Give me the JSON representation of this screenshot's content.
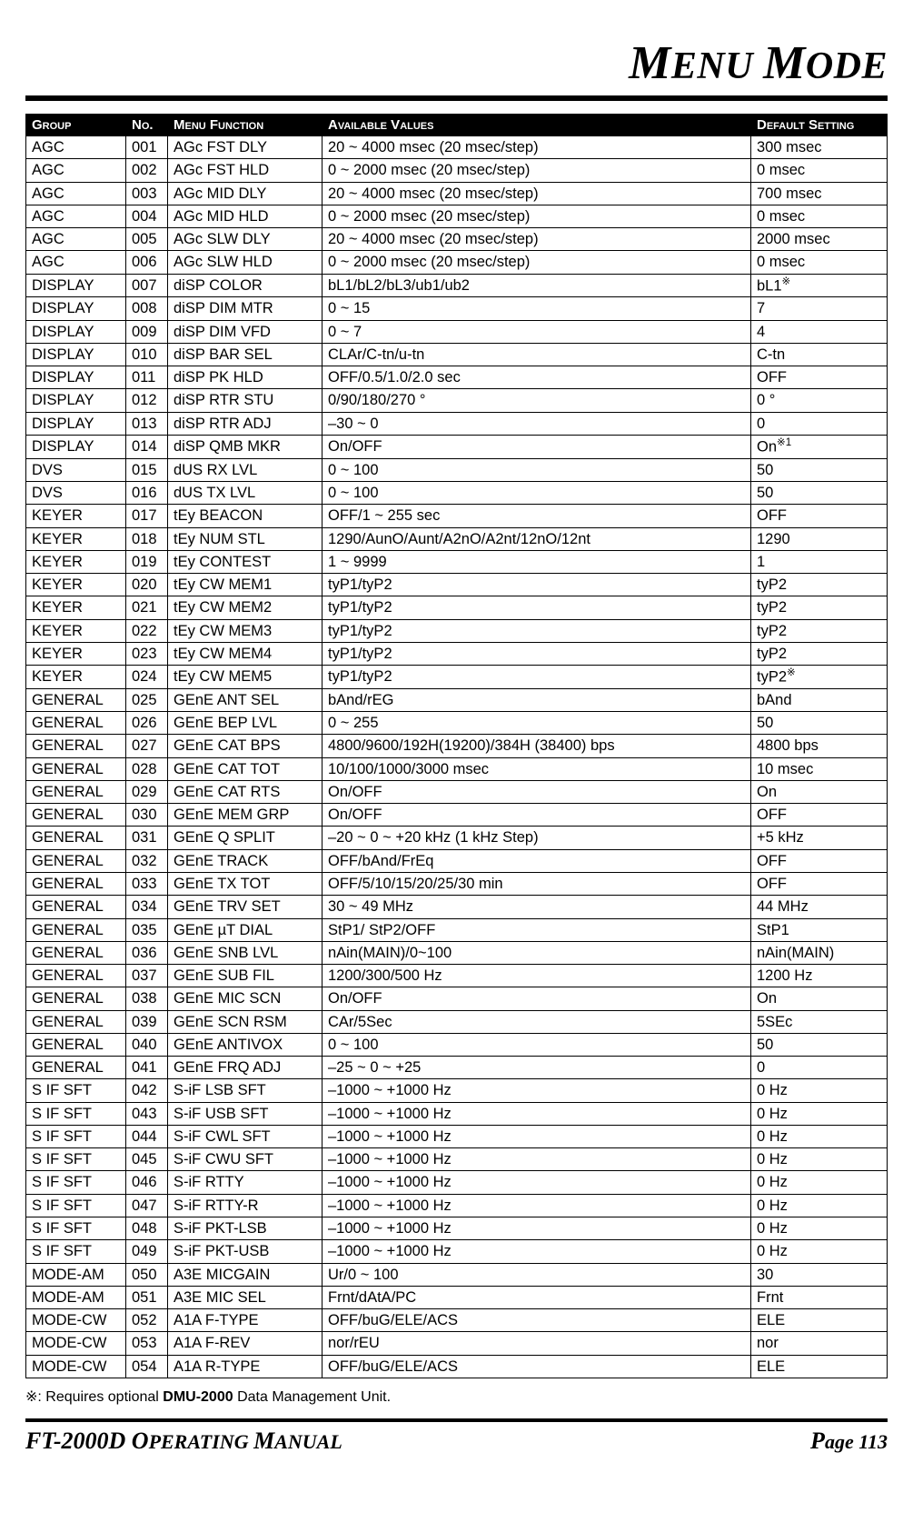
{
  "title_html": "<span class='cap'>M</span>ENU <span class='cap'>M</span>ODE",
  "columns": [
    "Group",
    "No.",
    "Menu Function",
    "Available Values",
    "Default Setting"
  ],
  "rows": [
    [
      "AGC",
      "001",
      "AGc FST DLY",
      "20 ~ 4000 msec (20 msec/step)",
      "300 msec"
    ],
    [
      "AGC",
      "002",
      "AGc FST HLD",
      "0 ~ 2000 msec (20 msec/step)",
      "0 msec"
    ],
    [
      "AGC",
      "003",
      "AGc MID DLY",
      "20 ~ 4000 msec (20 msec/step)",
      "700 msec"
    ],
    [
      "AGC",
      "004",
      "AGc MID HLD",
      "0 ~ 2000 msec (20 msec/step)",
      "0 msec"
    ],
    [
      "AGC",
      "005",
      "AGc SLW DLY",
      "20 ~ 4000 msec (20 msec/step)",
      "2000 msec"
    ],
    [
      "AGC",
      "006",
      "AGc SLW HLD",
      "0 ~ 2000 msec (20 msec/step)",
      "0 msec"
    ],
    [
      "DISPLAY",
      "007",
      "diSP COLOR",
      "bL1/bL2/bL3/ub1/ub2",
      "bL1<sup>※</sup>"
    ],
    [
      "DISPLAY",
      "008",
      "diSP DIM MTR",
      "0 ~ 15",
      "7"
    ],
    [
      "DISPLAY",
      "009",
      "diSP DIM VFD",
      "0 ~ 7",
      "4"
    ],
    [
      "DISPLAY",
      "010",
      "diSP BAR SEL",
      "CLAr/C-tn/u-tn",
      "C-tn"
    ],
    [
      "DISPLAY",
      "011",
      "diSP PK HLD",
      "OFF/0.5/1.0/2.0 sec",
      "OFF"
    ],
    [
      "DISPLAY",
      "012",
      "diSP RTR STU",
      "0/90/180/270 °",
      "0 °"
    ],
    [
      "DISPLAY",
      "013",
      "diSP RTR ADJ",
      "–30 ~ 0",
      "0"
    ],
    [
      "DISPLAY",
      "014",
      "diSP QMB MKR",
      "On/OFF",
      "On<sup>※1</sup>"
    ],
    [
      "DVS",
      "015",
      "dUS RX LVL",
      "0 ~ 100",
      "50"
    ],
    [
      "DVS",
      "016",
      "dUS TX LVL",
      "0 ~ 100",
      "50"
    ],
    [
      "KEYER",
      "017",
      "tEy BEACON",
      "OFF/1 ~ 255 sec",
      "OFF"
    ],
    [
      "KEYER",
      "018",
      "tEy NUM STL",
      "1290/AunO/Aunt/A2nO/A2nt/12nO/12nt",
      "1290"
    ],
    [
      "KEYER",
      "019",
      "tEy CONTEST",
      "1 ~ 9999",
      "1"
    ],
    [
      "KEYER",
      "020",
      "tEy CW MEM1",
      "tyP1/tyP2",
      "tyP2"
    ],
    [
      "KEYER",
      "021",
      "tEy CW MEM2",
      "tyP1/tyP2",
      "tyP2"
    ],
    [
      "KEYER",
      "022",
      "tEy CW MEM3",
      "tyP1/tyP2",
      "tyP2"
    ],
    [
      "KEYER",
      "023",
      "tEy CW MEM4",
      "tyP1/tyP2",
      "tyP2"
    ],
    [
      "KEYER",
      "024",
      "tEy CW MEM5",
      "tyP1/tyP2",
      "tyP2<sup>※</sup>"
    ],
    [
      "GENERAL",
      "025",
      "GEnE ANT SEL",
      "bAnd/rEG",
      "bAnd"
    ],
    [
      "GENERAL",
      "026",
      "GEnE BEP LVL",
      "0 ~ 255",
      "50"
    ],
    [
      "GENERAL",
      "027",
      "GEnE CAT BPS",
      "4800/9600/192H(19200)/384H (38400) bps",
      "4800 bps"
    ],
    [
      "GENERAL",
      "028",
      "GEnE CAT TOT",
      "10/100/1000/3000 msec",
      "10 msec"
    ],
    [
      "GENERAL",
      "029",
      "GEnE CAT RTS",
      "On/OFF",
      "On"
    ],
    [
      "GENERAL",
      "030",
      "GEnE MEM GRP",
      "On/OFF",
      "OFF"
    ],
    [
      "GENERAL",
      "031",
      "GEnE Q SPLIT",
      "–20 ~ 0 ~ +20 kHz (1 kHz Step)",
      "+5 kHz"
    ],
    [
      "GENERAL",
      "032",
      "GEnE TRACK",
      "OFF/bAnd/FrEq",
      "OFF"
    ],
    [
      "GENERAL",
      "033",
      "GEnE TX TOT",
      "OFF/5/10/15/20/25/30 min",
      "OFF"
    ],
    [
      "GENERAL",
      "034",
      "GEnE TRV SET",
      "30 ~ 49 MHz",
      "44 MHz"
    ],
    [
      "GENERAL",
      "035",
      "GEnE µT DIAL",
      "StP1/ StP2/OFF",
      "StP1"
    ],
    [
      "GENERAL",
      "036",
      "GEnE SNB LVL",
      "nAin(MAIN)/0~100",
      "nAin(MAIN)"
    ],
    [
      "GENERAL",
      "037",
      "GEnE SUB FIL",
      "1200/300/500 Hz",
      "1200 Hz"
    ],
    [
      "GENERAL",
      "038",
      "GEnE MIC SCN",
      "On/OFF",
      "On"
    ],
    [
      "GENERAL",
      "039",
      "GEnE SCN RSM",
      "CAr/5Sec",
      "5SEc"
    ],
    [
      "GENERAL",
      "040",
      "GEnE ANTIVOX",
      "0 ~ 100",
      "50"
    ],
    [
      "GENERAL",
      "041",
      "GEnE FRQ ADJ",
      "–25 ~ 0 ~ +25",
      "0"
    ],
    [
      "S IF SFT",
      "042",
      "S-iF LSB SFT",
      "–1000 ~ +1000 Hz",
      "0 Hz"
    ],
    [
      "S IF SFT",
      "043",
      "S-iF USB SFT",
      "–1000 ~ +1000 Hz",
      "0 Hz"
    ],
    [
      "S IF SFT",
      "044",
      "S-iF CWL SFT",
      "–1000 ~ +1000 Hz",
      "0 Hz"
    ],
    [
      "S IF SFT",
      "045",
      "S-iF CWU SFT",
      "–1000 ~ +1000 Hz",
      "0 Hz"
    ],
    [
      "S IF SFT",
      "046",
      "S-iF RTTY",
      "–1000 ~ +1000 Hz",
      "0 Hz"
    ],
    [
      "S IF SFT",
      "047",
      "S-iF RTTY-R",
      "–1000 ~ +1000 Hz",
      "0 Hz"
    ],
    [
      "S IF SFT",
      "048",
      "S-iF PKT-LSB",
      "–1000 ~ +1000 Hz",
      "0 Hz"
    ],
    [
      "S IF SFT",
      "049",
      "S-iF PKT-USB",
      "–1000 ~ +1000 Hz",
      "0 Hz"
    ],
    [
      "MODE-AM",
      "050",
      "A3E MICGAIN",
      "Ur/0 ~ 100",
      "30"
    ],
    [
      "MODE-AM",
      "051",
      "A3E MIC SEL",
      "Frnt/dAtA/PC",
      "Frnt"
    ],
    [
      "MODE-CW",
      "052",
      "A1A F-TYPE",
      "OFF/buG/ELE/ACS",
      "ELE"
    ],
    [
      "MODE-CW",
      "053",
      "A1A F-REV",
      "nor/rEU",
      "nor"
    ],
    [
      "MODE-CW",
      "054",
      "A1A R-TYPE",
      "OFF/buG/ELE/ACS",
      "ELE"
    ]
  ],
  "footnote_html": "※: Requires optional <span class='bold'>DMU-2000</span> Data Management Unit.",
  "footer_left_html": "<span class='cap'>FT-2000D O</span>PERATING <span class='cap'>M</span>ANUAL",
  "footer_right_html": "<span class='cap'>P</span>age 113"
}
